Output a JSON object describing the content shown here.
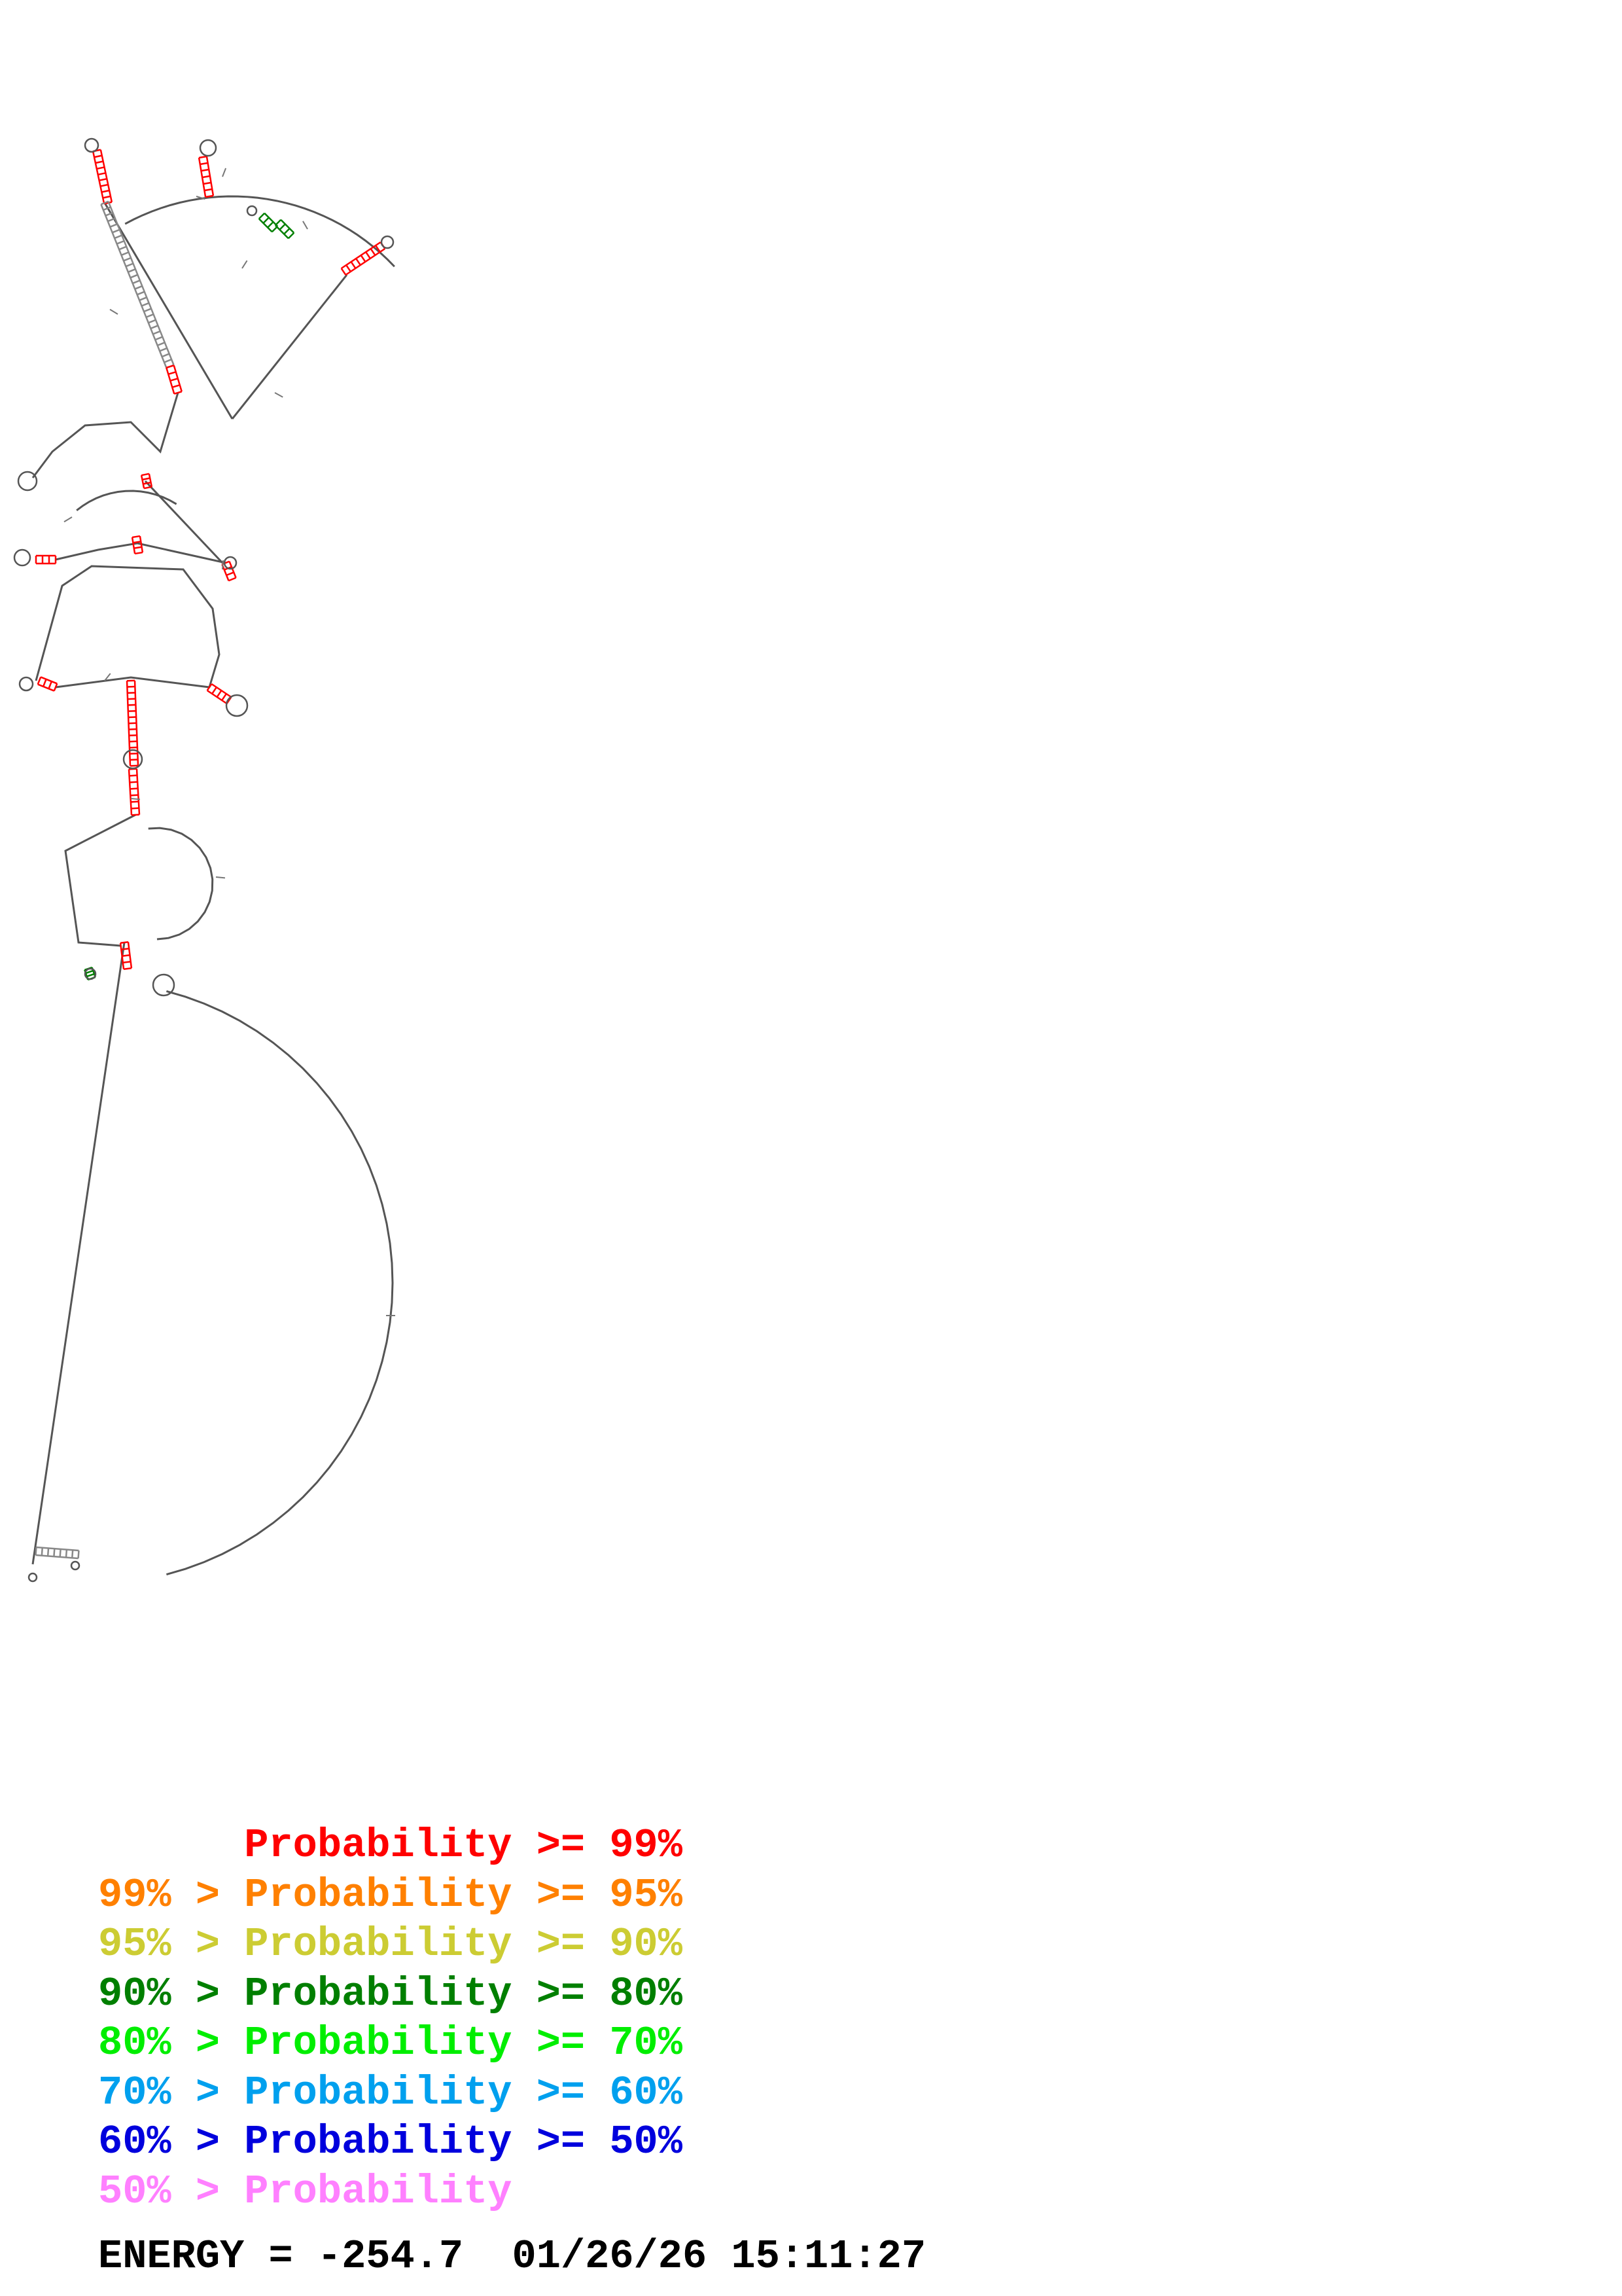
{
  "legend": {
    "rows": [
      {
        "prefix": "",
        "label": "Probability >= 99%",
        "color": "#ff0000"
      },
      {
        "prefix": "99% > ",
        "label": "Probability >= 95%",
        "color": "#ff8000"
      },
      {
        "prefix": "95% > ",
        "label": "Probability >= 90%",
        "color": "#cccc33"
      },
      {
        "prefix": "90% > ",
        "label": "Probability >= 80%",
        "color": "#007f00"
      },
      {
        "prefix": "80% > ",
        "label": "Probability >= 70%",
        "color": "#00ee00"
      },
      {
        "prefix": "70% > ",
        "label": "Probability >= 60%",
        "color": "#00a0ee"
      },
      {
        "prefix": "60% > ",
        "label": "Probability >= 50%",
        "color": "#0000dd"
      },
      {
        "prefix": "50% > ",
        "label": "Probability",
        "color": "#ff80ff"
      }
    ]
  },
  "energy": {
    "label": "ENERGY = ",
    "value": "-254.7",
    "timestamp": "01/26/26 15:11:27"
  },
  "structure": {
    "backbone_color": "#555555",
    "pair_color": "#a05050",
    "stem_color_high": "#ff0000",
    "stem_color_mid": "#007f00"
  }
}
